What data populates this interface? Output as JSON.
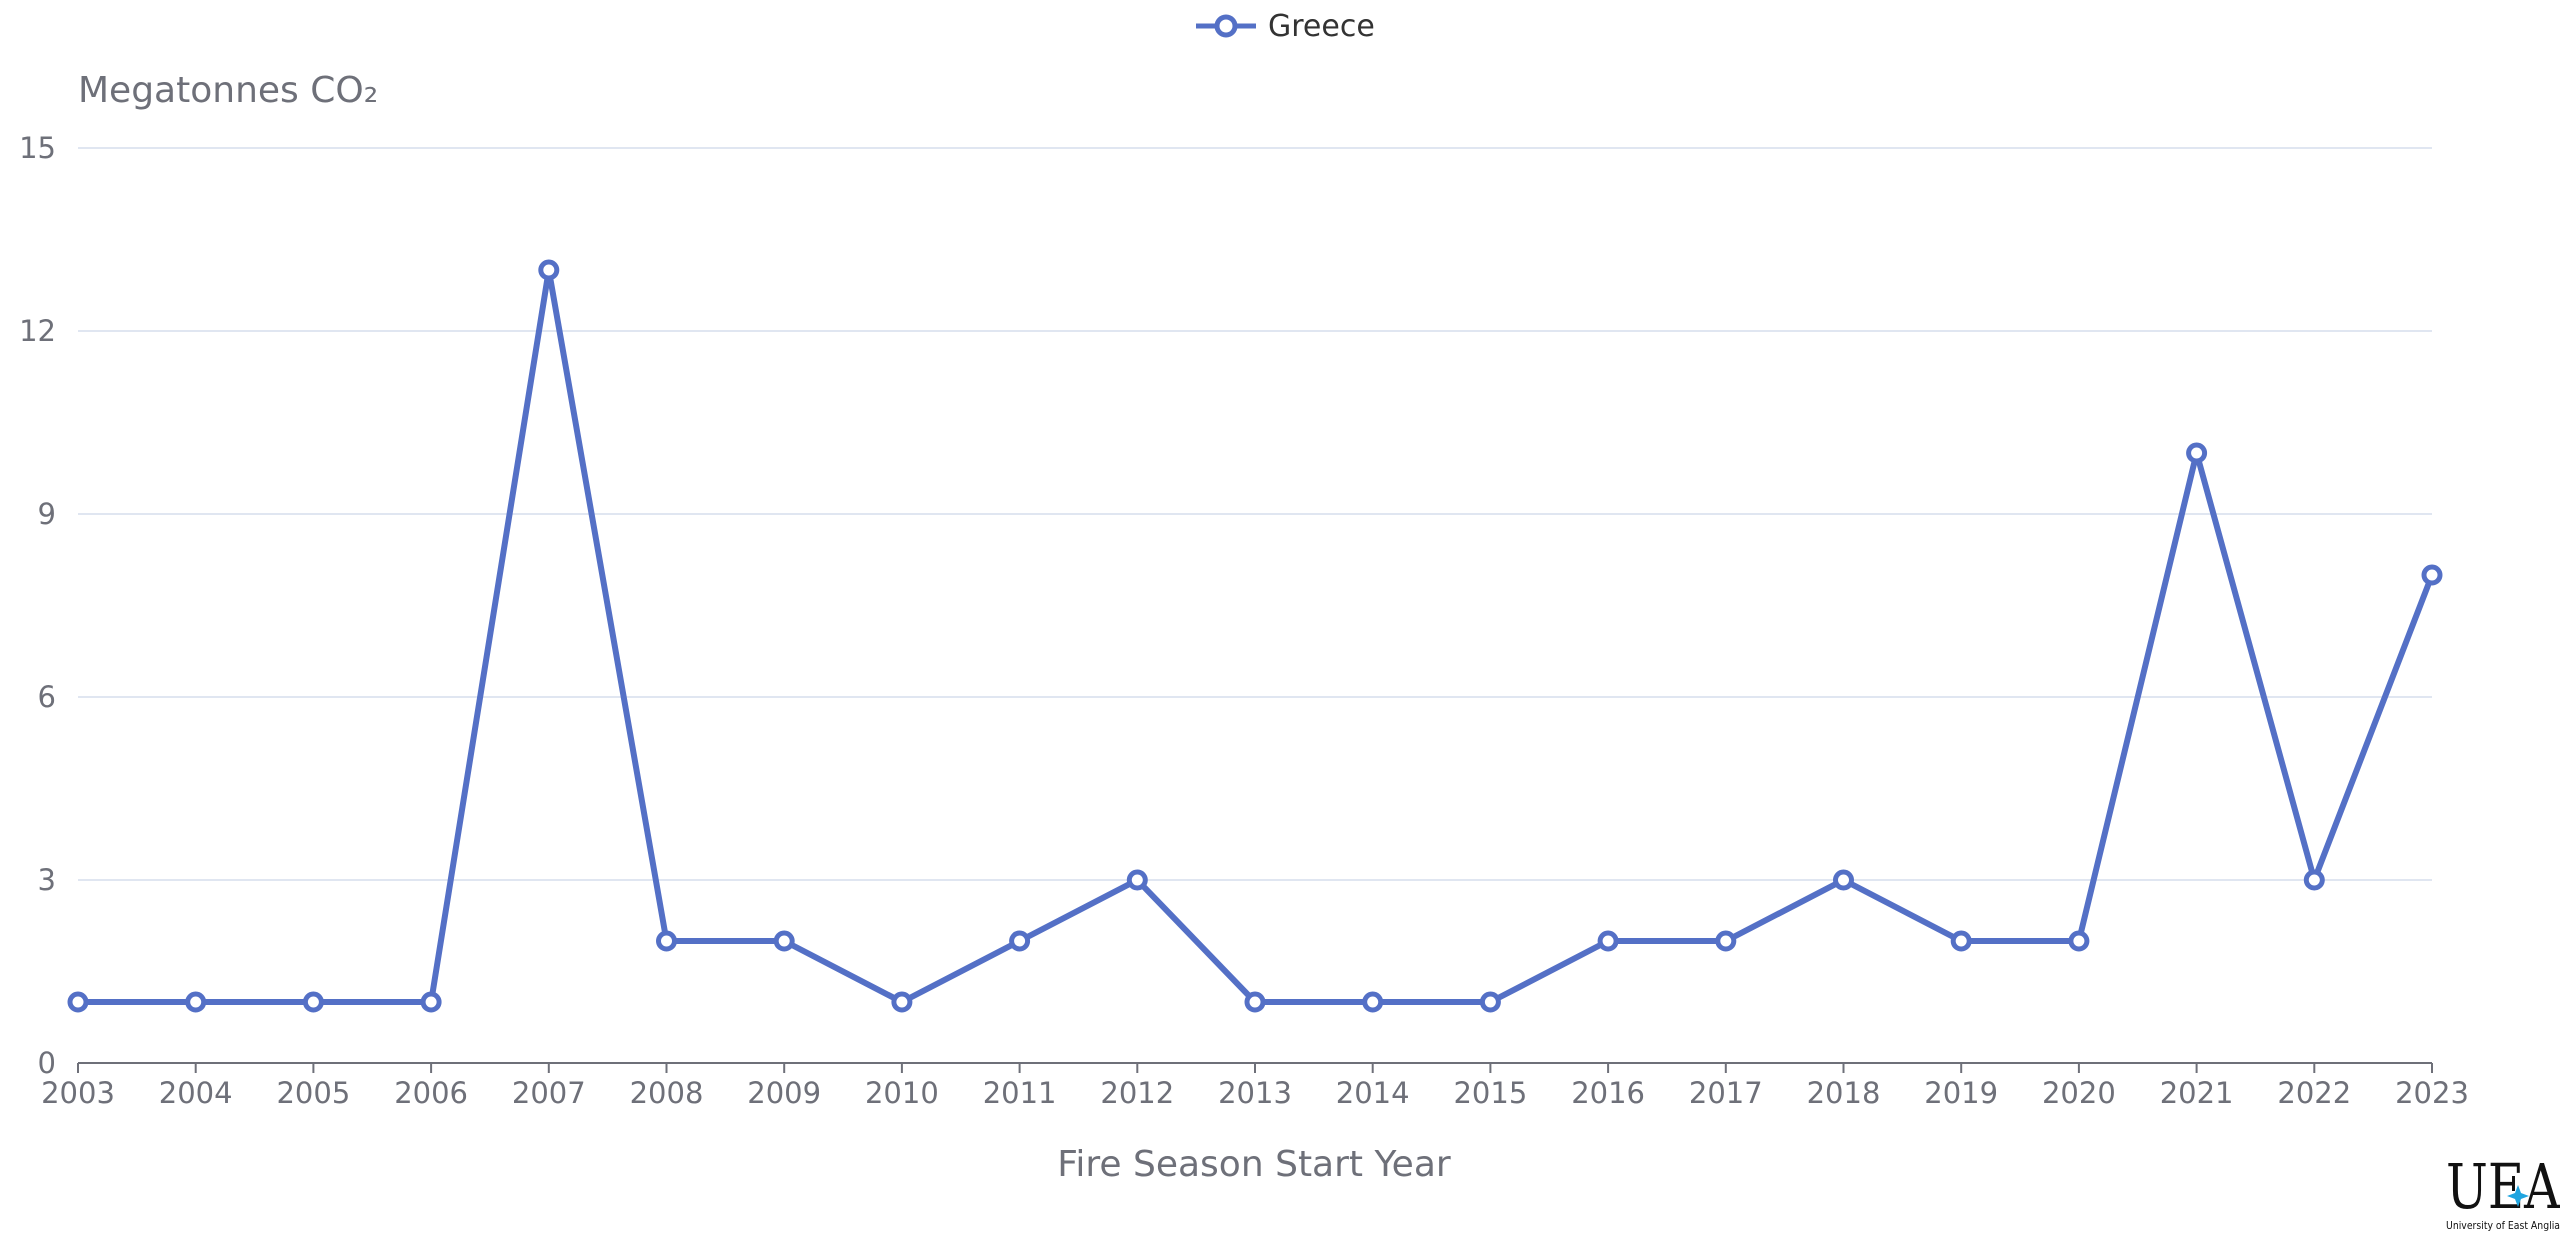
{
  "chart_data": {
    "type": "line",
    "x": [
      "2003",
      "2004",
      "2005",
      "2006",
      "2007",
      "2008",
      "2009",
      "2010",
      "2011",
      "2012",
      "2013",
      "2014",
      "2015",
      "2016",
      "2017",
      "2018",
      "2019",
      "2020",
      "2021",
      "2022",
      "2023"
    ],
    "series": [
      {
        "name": "Greece",
        "values": [
          1,
          1,
          1,
          1,
          13,
          2,
          2,
          1,
          2,
          3,
          1,
          1,
          1,
          2,
          2,
          3,
          2,
          2,
          10,
          3,
          8
        ]
      }
    ],
    "ylabel": "Megatonnes CO₂",
    "xlabel": "Fire Season Start Year",
    "ylim": [
      0,
      15
    ],
    "yticks": [
      0,
      3,
      6,
      9,
      12,
      15
    ],
    "grid": true,
    "legend_position": "top-center",
    "colors": {
      "series": "#5470c6",
      "grid": "#e0e6f1",
      "axis": "#6e7079"
    }
  },
  "logo": {
    "mark": "UEA",
    "caption": "University of East Anglia"
  }
}
